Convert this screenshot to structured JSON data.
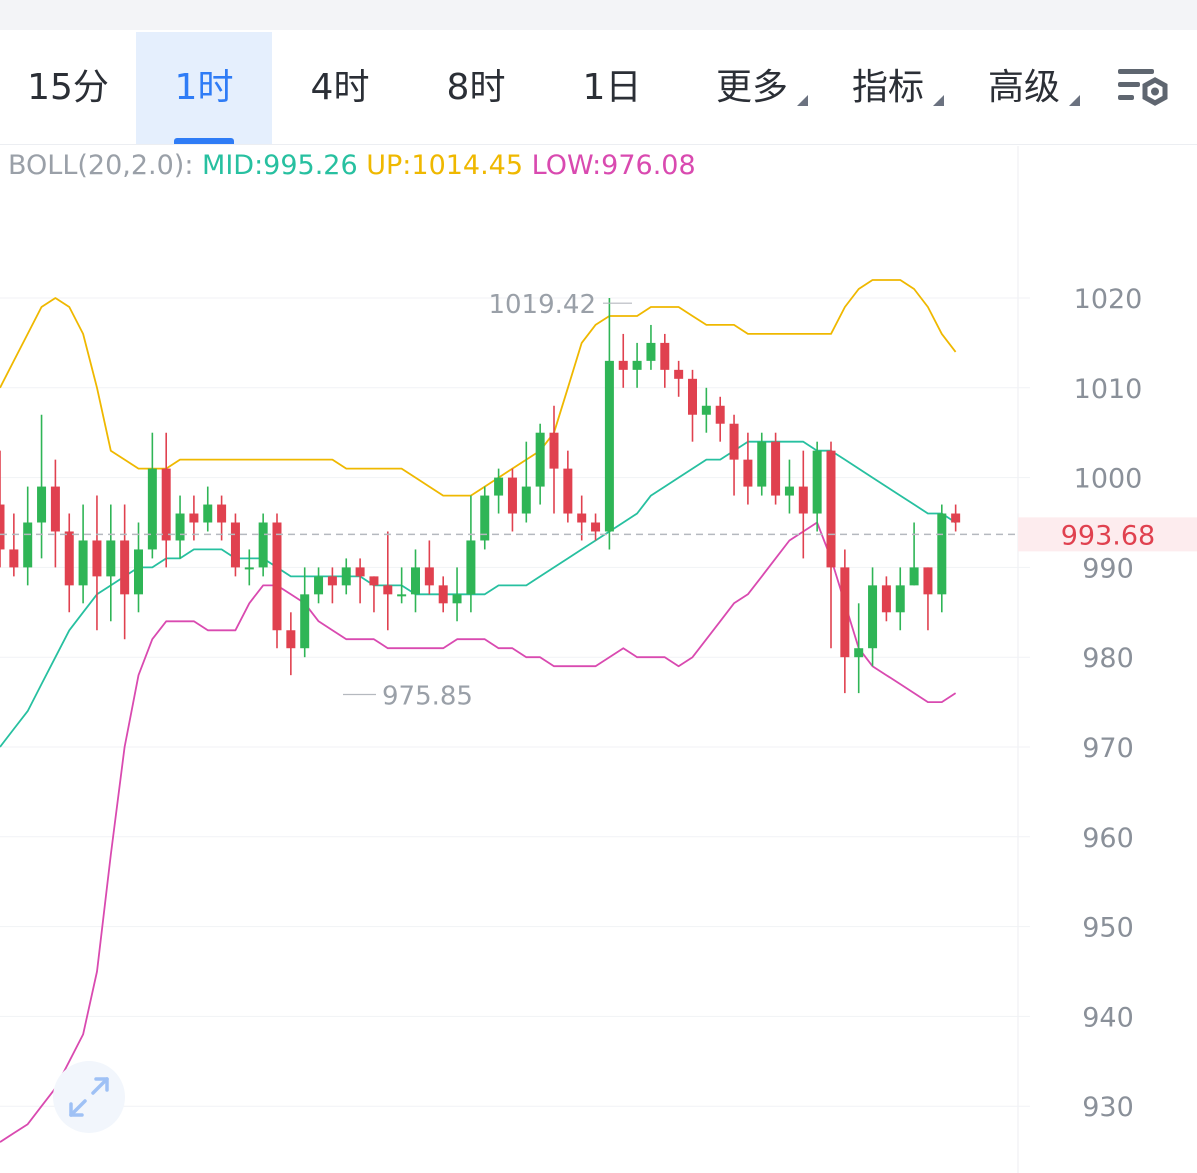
{
  "tabs": [
    {
      "label": "15分",
      "active": false
    },
    {
      "label": "1时",
      "active": true
    },
    {
      "label": "4时",
      "active": false
    },
    {
      "label": "8时",
      "active": false
    },
    {
      "label": "1日",
      "active": false
    },
    {
      "label": "更多",
      "active": false,
      "dropdown": true
    },
    {
      "label": "指标",
      "active": false,
      "dropdown": true
    },
    {
      "label": "高级",
      "active": false,
      "dropdown": true
    }
  ],
  "toolbar": {
    "settings_icon": "chart-settings-icon",
    "fullscreen_icon": "expand-arrows-icon"
  },
  "legend": {
    "label": "BOLL(20,2.0):",
    "mid": "MID:995.26",
    "up": "UP:1014.45",
    "low": "LOW:976.08"
  },
  "colors": {
    "up_candle": "#2fb556",
    "down_candle": "#e0414f",
    "mid_line": "#27c0a0",
    "upper_band": "#efb800",
    "lower_band": "#d94ab0",
    "price_tag": "#e0414f",
    "accent": "#2f7cf6"
  },
  "chart_data": {
    "type": "candlestick",
    "indicator": "BOLL(20,2.0)",
    "ylim": [
      925,
      1025
    ],
    "y_ticks": [
      1020,
      1010,
      1000,
      990,
      980,
      970,
      960,
      950,
      940,
      930
    ],
    "current_price": 993.68,
    "current_price_label": "993.68",
    "annotations": [
      {
        "text": "1019.42",
        "value": 1019.42
      },
      {
        "text": "975.85",
        "value": 975.85
      }
    ],
    "candles": [
      [
        997,
        992,
        1003,
        990
      ],
      [
        992,
        990,
        996,
        989
      ],
      [
        990,
        995,
        999,
        988
      ],
      [
        995,
        999,
        1007,
        991
      ],
      [
        999,
        994,
        1002,
        990
      ],
      [
        994,
        988,
        996,
        985
      ],
      [
        988,
        993,
        997,
        986
      ],
      [
        993,
        989,
        998,
        983
      ],
      [
        989,
        993,
        997,
        984
      ],
      [
        993,
        987,
        997,
        982
      ],
      [
        987,
        992,
        995,
        985
      ],
      [
        992,
        1001,
        1005,
        991
      ],
      [
        1001,
        993,
        1005,
        990
      ],
      [
        993,
        996,
        998,
        991
      ],
      [
        996,
        995,
        998,
        993
      ],
      [
        995,
        997,
        999,
        994
      ],
      [
        997,
        995,
        998,
        993
      ],
      [
        995,
        990,
        996,
        989
      ],
      [
        990,
        990,
        992,
        988
      ],
      [
        990,
        995,
        996,
        989
      ],
      [
        995,
        983,
        996,
        981
      ],
      [
        983,
        981,
        985,
        978
      ],
      [
        981,
        987,
        990,
        980
      ],
      [
        987,
        989,
        990,
        986
      ],
      [
        989,
        988,
        990,
        986
      ],
      [
        988,
        990,
        991,
        987
      ],
      [
        990,
        989,
        991,
        986
      ],
      [
        989,
        988,
        989,
        985
      ],
      [
        988,
        987,
        994,
        983
      ],
      [
        987,
        987,
        990,
        986
      ],
      [
        987,
        990,
        992,
        985
      ],
      [
        990,
        988,
        993,
        987
      ],
      [
        988,
        986,
        989,
        985
      ],
      [
        986,
        987,
        990,
        984
      ],
      [
        987,
        993,
        998,
        985
      ],
      [
        993,
        998,
        999,
        992
      ],
      [
        998,
        1000,
        1001,
        996
      ],
      [
        1000,
        996,
        1001,
        994
      ],
      [
        996,
        999,
        1004,
        995
      ],
      [
        999,
        1005,
        1006,
        997
      ],
      [
        1005,
        1001,
        1008,
        996
      ],
      [
        1001,
        996,
        1003,
        995
      ],
      [
        996,
        995,
        998,
        993
      ],
      [
        995,
        994,
        996,
        993
      ],
      [
        994,
        1013,
        1020,
        992
      ],
      [
        1013,
        1012,
        1016,
        1010
      ],
      [
        1012,
        1013,
        1015,
        1010
      ],
      [
        1013,
        1015,
        1017,
        1012
      ],
      [
        1015,
        1012,
        1016,
        1010
      ],
      [
        1012,
        1011,
        1013,
        1009
      ],
      [
        1011,
        1007,
        1012,
        1004
      ],
      [
        1007,
        1008,
        1010,
        1005
      ],
      [
        1008,
        1006,
        1009,
        1004
      ],
      [
        1006,
        1002,
        1007,
        998
      ],
      [
        1002,
        999,
        1005,
        997
      ],
      [
        999,
        1004,
        1005,
        998
      ],
      [
        1004,
        998,
        1005,
        997
      ],
      [
        998,
        999,
        1002,
        996
      ],
      [
        999,
        996,
        1003,
        991
      ],
      [
        996,
        1003,
        1004,
        994
      ],
      [
        1003,
        990,
        1004,
        981
      ],
      [
        990,
        980,
        992,
        976
      ],
      [
        980,
        981,
        986,
        976
      ],
      [
        981,
        988,
        990,
        979
      ],
      [
        988,
        985,
        989,
        984
      ],
      [
        985,
        988,
        990,
        983
      ],
      [
        988,
        990,
        995,
        988
      ],
      [
        990,
        987,
        990,
        983
      ],
      [
        987,
        996,
        997,
        985
      ],
      [
        996,
        995,
        997,
        994
      ]
    ],
    "series": [
      {
        "name": "MID",
        "values": [
          970,
          972,
          974,
          977,
          980,
          983,
          985,
          987,
          988,
          989,
          990,
          990,
          991,
          991,
          992,
          992,
          992,
          991,
          991,
          991,
          990,
          989,
          989,
          989,
          989,
          989,
          989,
          988,
          988,
          988,
          987,
          987,
          987,
          987,
          987,
          987,
          988,
          988,
          988,
          989,
          990,
          991,
          992,
          993,
          994,
          995,
          996,
          998,
          999,
          1000,
          1001,
          1002,
          1002,
          1003,
          1004,
          1004,
          1004,
          1004,
          1004,
          1003,
          1003,
          1002,
          1001,
          1000,
          999,
          998,
          997,
          996,
          996,
          995
        ]
      },
      {
        "name": "UP",
        "values": [
          1010,
          1013,
          1016,
          1019,
          1020,
          1019,
          1016,
          1010,
          1003,
          1002,
          1001,
          1001,
          1001,
          1002,
          1002,
          1002,
          1002,
          1002,
          1002,
          1002,
          1002,
          1002,
          1002,
          1002,
          1002,
          1001,
          1001,
          1001,
          1001,
          1001,
          1000,
          999,
          998,
          998,
          998,
          999,
          1000,
          1001,
          1002,
          1003,
          1005,
          1010,
          1015,
          1017,
          1018,
          1018,
          1018,
          1019,
          1019,
          1019,
          1018,
          1017,
          1017,
          1017,
          1016,
          1016,
          1016,
          1016,
          1016,
          1016,
          1016,
          1019,
          1021,
          1022,
          1022,
          1022,
          1021,
          1019,
          1016,
          1014
        ]
      },
      {
        "name": "LOW",
        "values": [
          926,
          927,
          928,
          930,
          932,
          935,
          938,
          945,
          958,
          970,
          978,
          982,
          984,
          984,
          984,
          983,
          983,
          983,
          986,
          988,
          988,
          987,
          986,
          984,
          983,
          982,
          982,
          982,
          981,
          981,
          981,
          981,
          981,
          982,
          982,
          982,
          981,
          981,
          980,
          980,
          979,
          979,
          979,
          979,
          980,
          981,
          980,
          980,
          980,
          979,
          980,
          982,
          984,
          986,
          987,
          989,
          991,
          993,
          994,
          995,
          991,
          986,
          981,
          979,
          978,
          977,
          976,
          975,
          975,
          976
        ]
      }
    ]
  }
}
